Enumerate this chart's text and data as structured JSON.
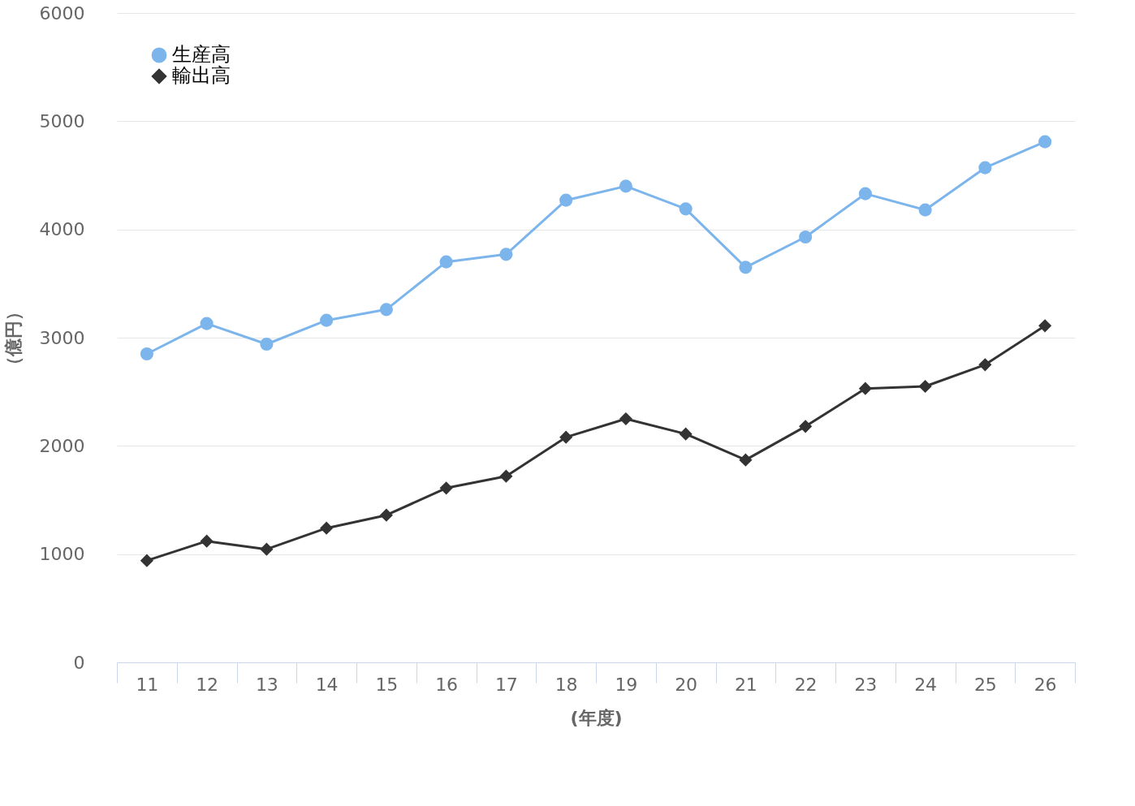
{
  "chart_data": {
    "type": "line",
    "xlabel": "(年度)",
    "ylabel": "（億円）",
    "categories": [
      "11",
      "12",
      "13",
      "14",
      "15",
      "16",
      "17",
      "18",
      "19",
      "20",
      "21",
      "22",
      "23",
      "24",
      "25",
      "26"
    ],
    "series": [
      {
        "name": "生産高",
        "color": "#7cb5ec",
        "marker": "circle",
        "values": [
          2850,
          3130,
          2940,
          3160,
          3260,
          3700,
          3770,
          4270,
          4400,
          4190,
          3650,
          3930,
          4330,
          4180,
          4570,
          4810
        ]
      },
      {
        "name": "輸出高",
        "color": "#333333",
        "marker": "diamond",
        "values": [
          940,
          1120,
          1045,
          1240,
          1360,
          1610,
          1720,
          2080,
          2250,
          2110,
          1870,
          2180,
          2530,
          2550,
          2750,
          3110
        ]
      }
    ],
    "ylim": [
      0,
      6000
    ],
    "yticks": [
      0,
      1000,
      2000,
      3000,
      4000,
      5000,
      6000
    ],
    "grid": "y",
    "legend": "top left",
    "line_style": "solid"
  }
}
